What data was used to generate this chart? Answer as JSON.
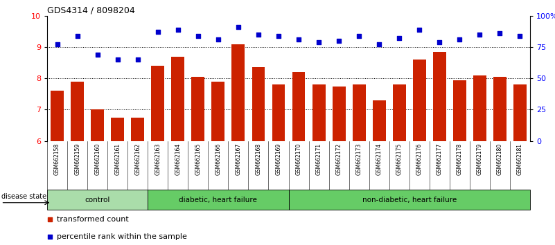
{
  "title": "GDS4314 / 8098204",
  "samples": [
    "GSM662158",
    "GSM662159",
    "GSM662160",
    "GSM662161",
    "GSM662162",
    "GSM662163",
    "GSM662164",
    "GSM662165",
    "GSM662166",
    "GSM662167",
    "GSM662168",
    "GSM662169",
    "GSM662170",
    "GSM662171",
    "GSM662172",
    "GSM662173",
    "GSM662174",
    "GSM662175",
    "GSM662176",
    "GSM662177",
    "GSM662178",
    "GSM662179",
    "GSM662180",
    "GSM662181"
  ],
  "bar_values": [
    7.6,
    7.9,
    7.0,
    6.75,
    6.75,
    8.4,
    8.7,
    8.05,
    7.9,
    9.1,
    8.35,
    7.8,
    8.2,
    7.8,
    7.75,
    7.8,
    7.3,
    7.8,
    8.6,
    8.85,
    7.95,
    8.1,
    8.05,
    7.8
  ],
  "dot_values": [
    9.1,
    9.35,
    8.75,
    8.6,
    8.6,
    9.5,
    9.55,
    9.35,
    9.25,
    9.65,
    9.4,
    9.35,
    9.25,
    9.15,
    9.2,
    9.35,
    9.1,
    9.3,
    9.55,
    9.15,
    9.25,
    9.4,
    9.45,
    9.35
  ],
  "bar_color": "#cc2200",
  "dot_color": "#0000cc",
  "ylim_left": [
    6,
    10
  ],
  "ylim_right": [
    0,
    100
  ],
  "yticks_left": [
    6,
    7,
    8,
    9,
    10
  ],
  "yticks_right": [
    0,
    25,
    50,
    75,
    100
  ],
  "ytick_labels_right": [
    "0",
    "25",
    "50",
    "75",
    "100%"
  ],
  "group_colors": [
    "#aaddaa",
    "#66cc66",
    "#66cc66"
  ],
  "group_starts": [
    0,
    5,
    12
  ],
  "group_ends": [
    5,
    12,
    24
  ],
  "group_labels": [
    "control",
    "diabetic, heart failure",
    "non-diabetic, heart failure"
  ],
  "disease_state_label": "disease state",
  "legend_bar_label": "transformed count",
  "legend_dot_label": "percentile rank within the sample",
  "bg_gray": "#c8c8c8"
}
